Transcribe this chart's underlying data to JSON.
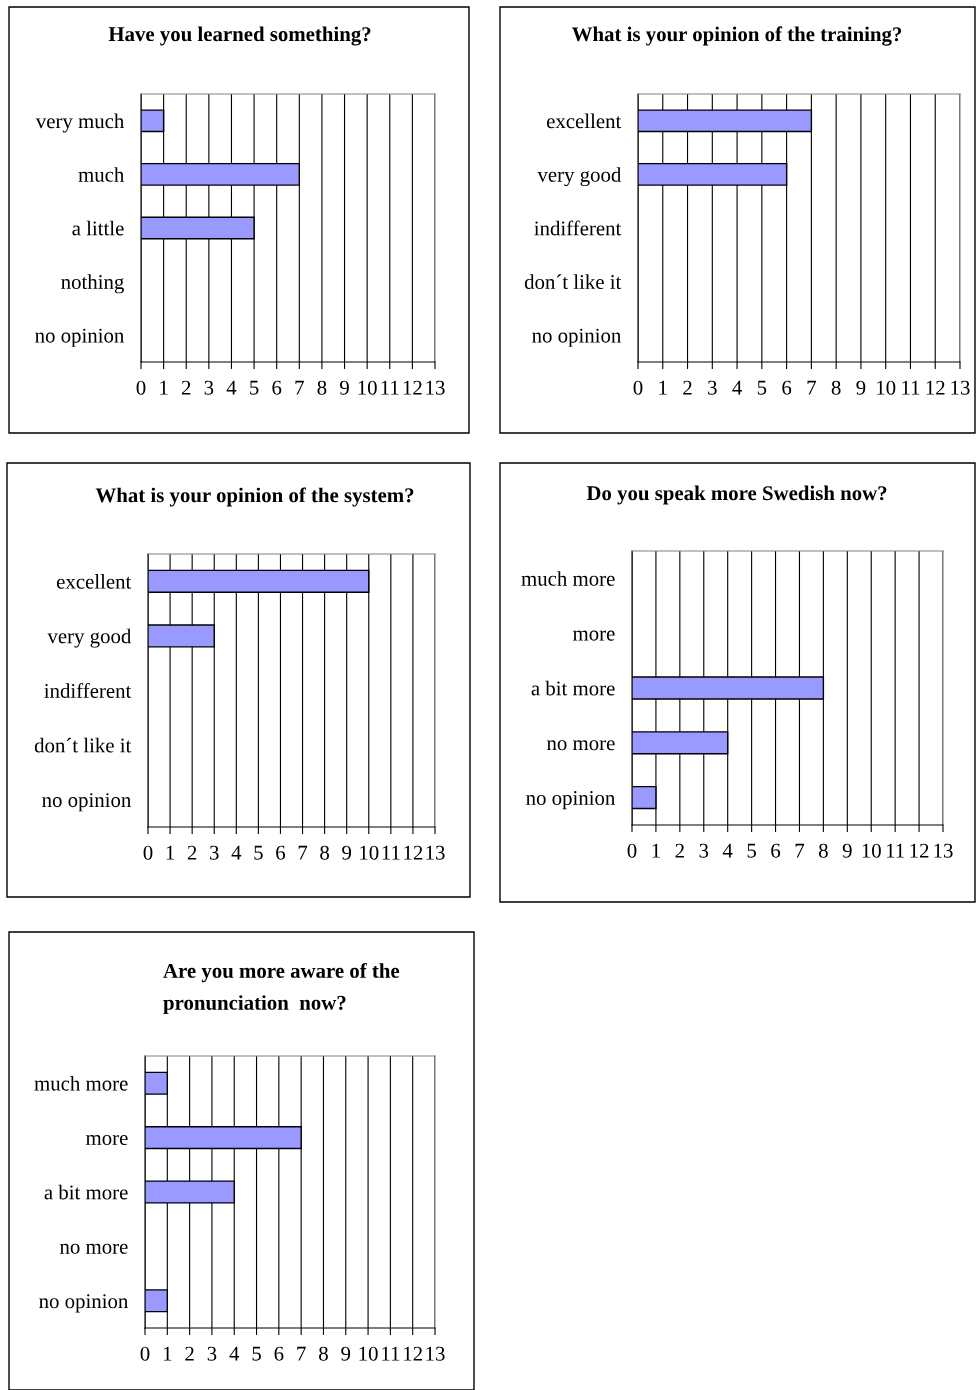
{
  "chart_data": [
    {
      "type": "bar",
      "orientation": "horizontal",
      "title": "Have you learned something?",
      "categories": [
        "very much",
        "much",
        "a little",
        "nothing",
        "no opinion"
      ],
      "values": [
        1,
        7,
        5,
        0,
        0
      ],
      "color": "#9999ff",
      "xlim": [
        0,
        13
      ],
      "xticks": [
        0,
        1,
        2,
        3,
        4,
        5,
        6,
        7,
        8,
        9,
        10,
        11,
        12,
        13
      ],
      "grid": "x"
    },
    {
      "type": "bar",
      "orientation": "horizontal",
      "title": "What is your opinion of the training?",
      "categories": [
        "excellent",
        "very good",
        "indifferent",
        "don´t like it",
        "no opinion"
      ],
      "values": [
        7,
        6,
        0,
        0,
        0
      ],
      "color": "#9999ff",
      "xlim": [
        0,
        13
      ],
      "xticks": [
        0,
        1,
        2,
        3,
        4,
        5,
        6,
        7,
        8,
        9,
        10,
        11,
        12,
        13
      ],
      "grid": "x"
    },
    {
      "type": "bar",
      "orientation": "horizontal",
      "title": "What is your opinion of the system?",
      "categories": [
        "excellent",
        "very good",
        "indifferent",
        "don´t like it",
        "no opinion"
      ],
      "values": [
        10,
        3,
        0,
        0,
        0
      ],
      "color": "#9999ff",
      "xlim": [
        0,
        13
      ],
      "xticks": [
        0,
        1,
        2,
        3,
        4,
        5,
        6,
        7,
        8,
        9,
        10,
        11,
        12,
        13
      ],
      "grid": "x"
    },
    {
      "type": "bar",
      "orientation": "horizontal",
      "title": "Do you speak more Swedish now?",
      "categories": [
        "much more",
        "more",
        "a bit more",
        "no more",
        "no opinion"
      ],
      "values": [
        0,
        0,
        8,
        4,
        1
      ],
      "color": "#9999ff",
      "xlim": [
        0,
        13
      ],
      "xticks": [
        0,
        1,
        2,
        3,
        4,
        5,
        6,
        7,
        8,
        9,
        10,
        11,
        12,
        13
      ],
      "grid": "x"
    },
    {
      "type": "bar",
      "orientation": "horizontal",
      "title": "Are you more aware of the\npronunciation  now?",
      "categories": [
        "much more",
        "more",
        "a bit more",
        "no more",
        "no opinion"
      ],
      "values": [
        1,
        7,
        4,
        0,
        1
      ],
      "color": "#9999ff",
      "xlim": [
        0,
        13
      ],
      "xticks": [
        0,
        1,
        2,
        3,
        4,
        5,
        6,
        7,
        8,
        9,
        10,
        11,
        12,
        13
      ],
      "grid": "x"
    }
  ]
}
